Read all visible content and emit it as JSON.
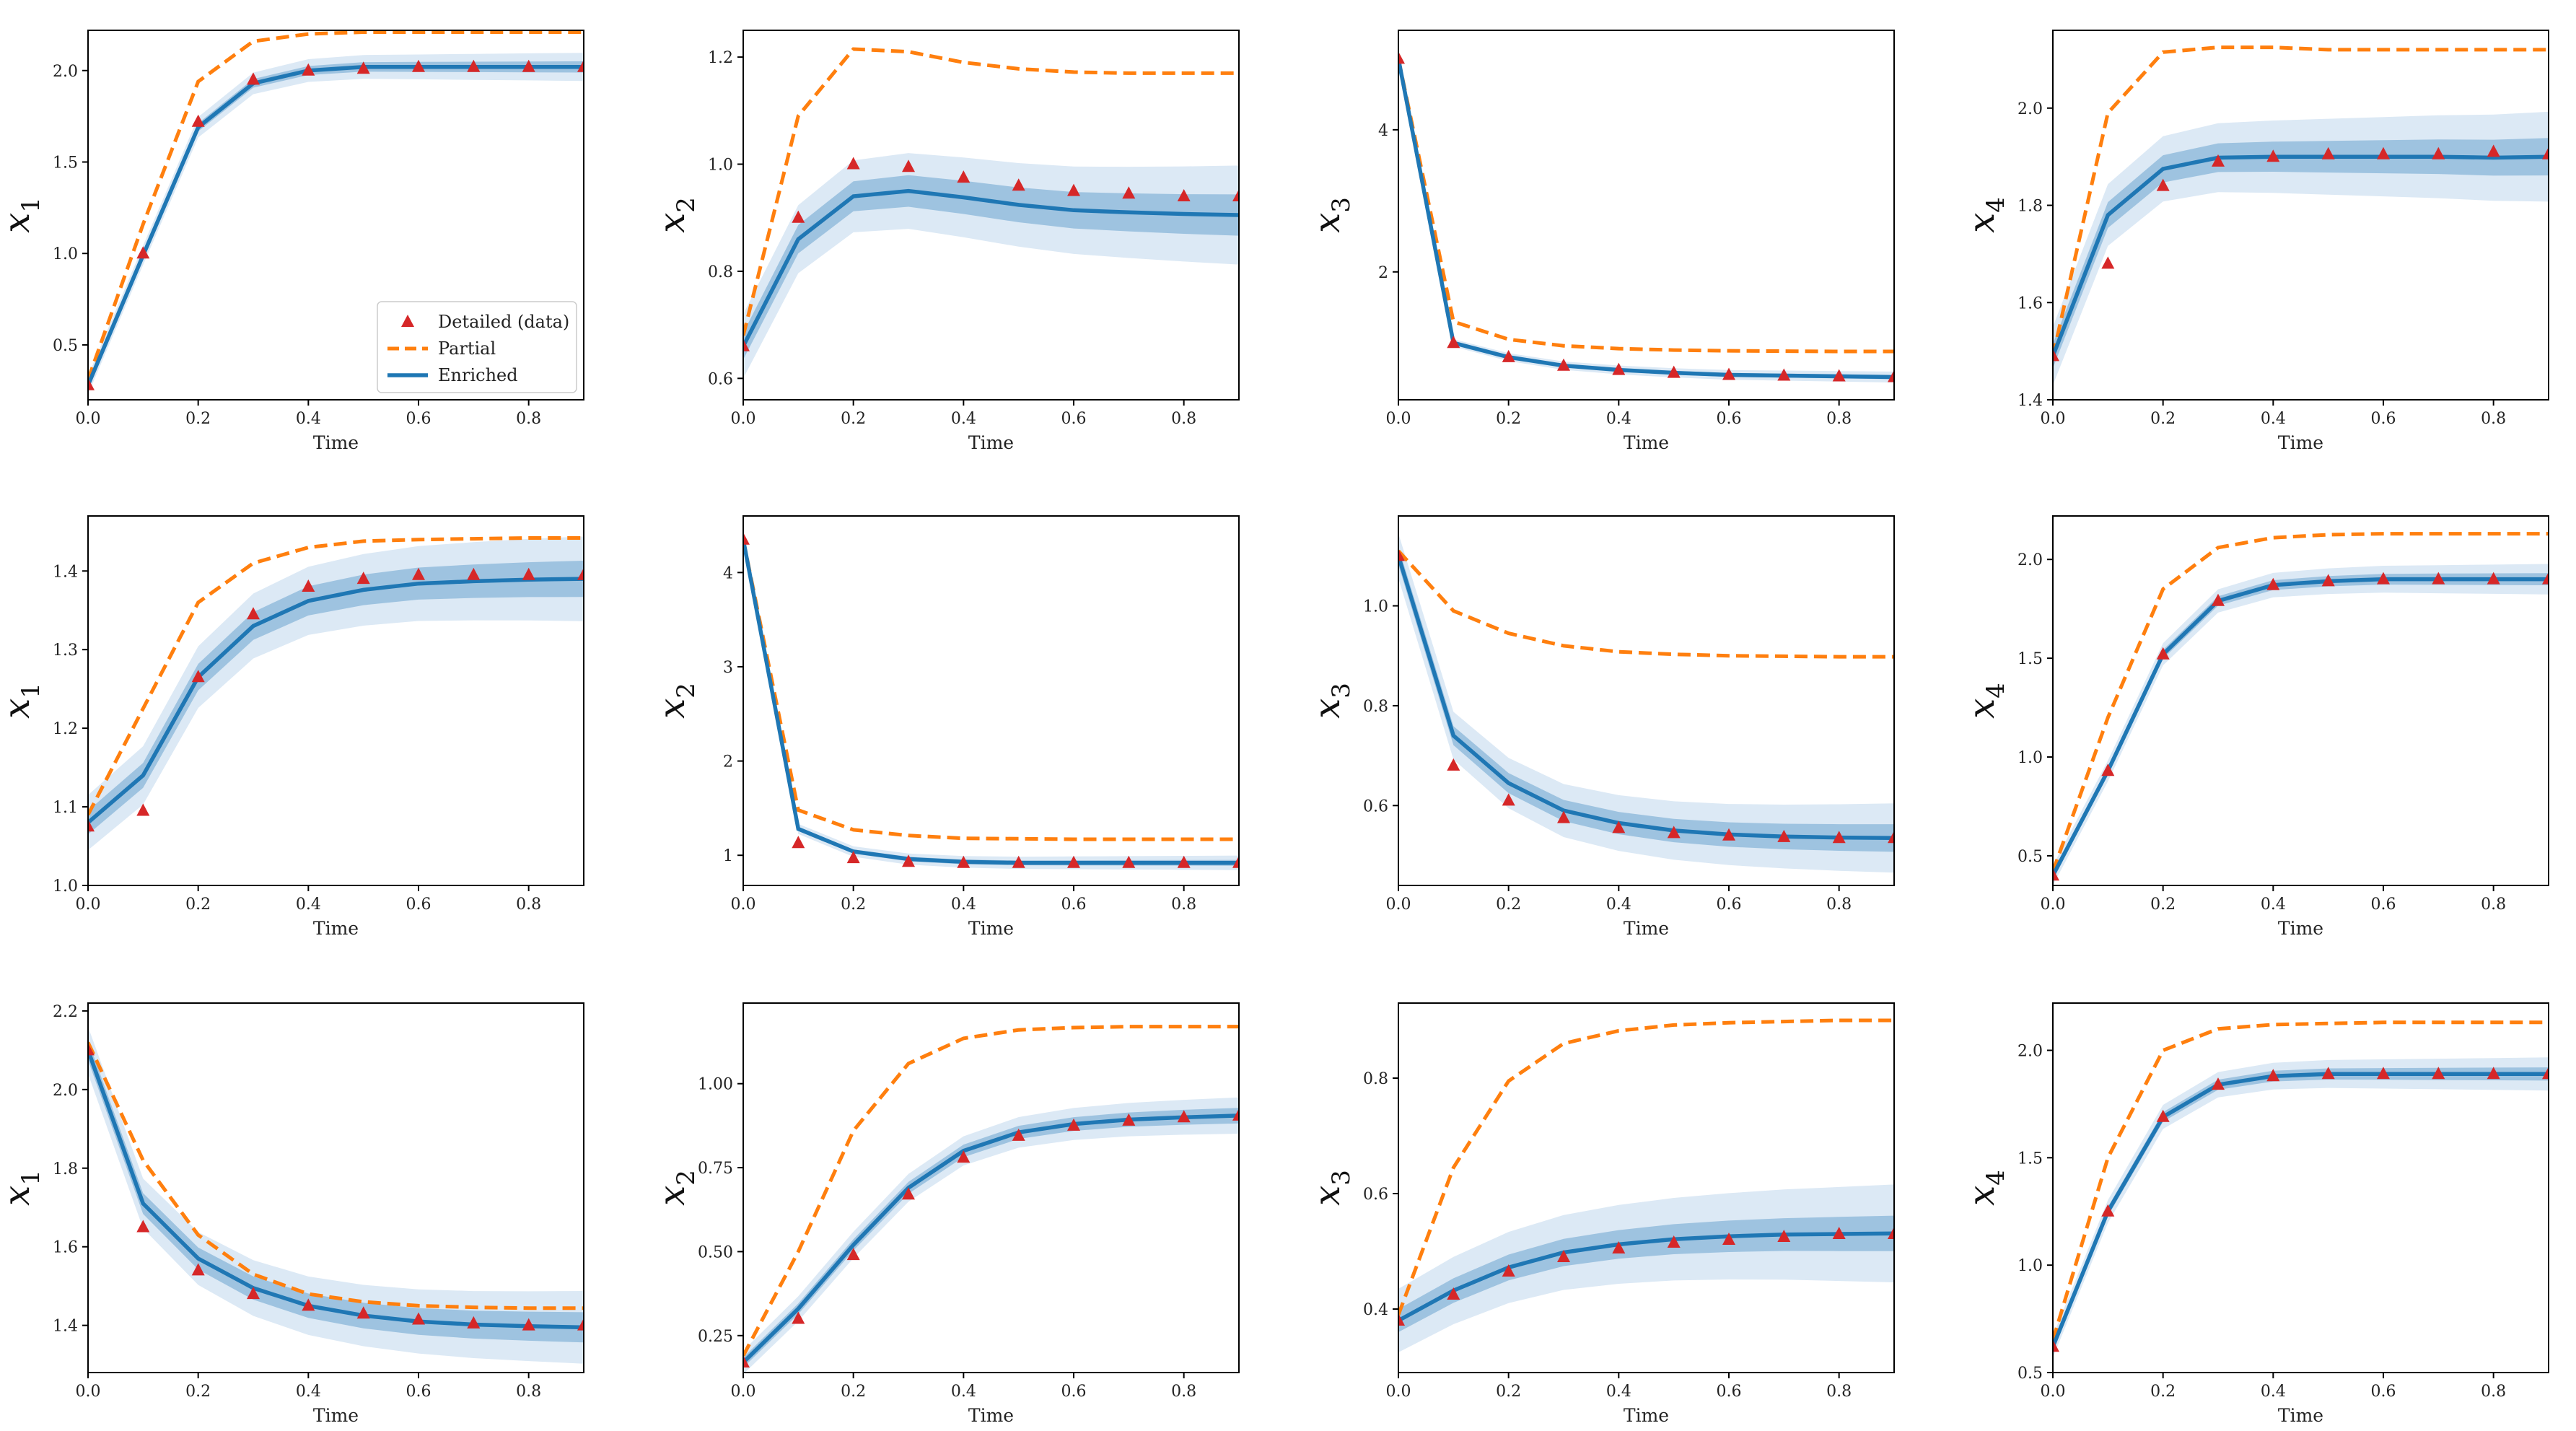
{
  "colors": {
    "detailed": "#d62728",
    "partial": "#ff7f0e",
    "enriched": "#1f77b4",
    "band_outer": "#dce9f5",
    "band_inner": "#9ec3e0"
  },
  "legend": {
    "detailed": "Detailed (data)",
    "partial": "Partial",
    "enriched": "Enriched",
    "location": "lower right"
  },
  "chart_data": [
    {
      "type": "line",
      "ylabel_var": "x",
      "ylabel_sub": "1",
      "xlabel": "Time",
      "xlim": [
        0,
        0.9
      ],
      "ylim": [
        0.2,
        2.22
      ],
      "xticks": [
        0,
        0.2,
        0.4,
        0.6,
        0.8
      ],
      "yticks": [
        0.5,
        1.0,
        1.5,
        2.0
      ],
      "ytick_decimals": 1,
      "show_legend": true,
      "x": [
        0,
        0.1,
        0.2,
        0.3,
        0.4,
        0.5,
        0.6,
        0.7,
        0.8,
        0.9
      ],
      "detailed": [
        0.28,
        1.0,
        1.72,
        1.95,
        2.0,
        2.01,
        2.02,
        2.02,
        2.02,
        2.02
      ],
      "partial": [
        0.31,
        1.16,
        1.94,
        2.16,
        2.2,
        2.21,
        2.21,
        2.21,
        2.21,
        2.21
      ],
      "enriched": [
        0.28,
        0.99,
        1.69,
        1.93,
        2.0,
        2.02,
        2.02,
        2.02,
        2.02,
        2.02
      ],
      "inner_band": 0.02,
      "outer_band": 0.05
    },
    {
      "type": "line",
      "ylabel_var": "x",
      "ylabel_sub": "2",
      "xlabel": "Time",
      "xlim": [
        0,
        0.9
      ],
      "ylim": [
        0.56,
        1.25
      ],
      "xticks": [
        0,
        0.2,
        0.4,
        0.6,
        0.8
      ],
      "yticks": [
        0.6,
        0.8,
        1.0,
        1.2
      ],
      "ytick_decimals": 1,
      "show_legend": false,
      "x": [
        0,
        0.1,
        0.2,
        0.3,
        0.4,
        0.5,
        0.6,
        0.7,
        0.8,
        0.9
      ],
      "detailed": [
        0.66,
        0.9,
        1.0,
        0.995,
        0.975,
        0.96,
        0.95,
        0.945,
        0.94,
        0.94
      ],
      "partial": [
        0.68,
        1.09,
        1.215,
        1.21,
        1.19,
        1.178,
        1.172,
        1.17,
        1.17,
        1.17
      ],
      "enriched": [
        0.66,
        0.86,
        0.94,
        0.95,
        0.938,
        0.924,
        0.914,
        0.91,
        0.907,
        0.905
      ],
      "inner_band": 0.025,
      "outer_band": 0.06
    },
    {
      "type": "line",
      "ylabel_var": "x",
      "ylabel_sub": "3",
      "xlabel": "Time",
      "xlim": [
        0,
        0.9
      ],
      "ylim": [
        0.2,
        5.4
      ],
      "xticks": [
        0,
        0.2,
        0.4,
        0.6,
        0.8
      ],
      "yticks": [
        2,
        4
      ],
      "ytick_decimals": 0,
      "show_legend": false,
      "x": [
        0,
        0.1,
        0.2,
        0.3,
        0.4,
        0.5,
        0.6,
        0.7,
        0.8,
        0.9
      ],
      "detailed": [
        5.0,
        1.0,
        0.8,
        0.68,
        0.62,
        0.58,
        0.55,
        0.54,
        0.53,
        0.52
      ],
      "partial": [
        5.0,
        1.3,
        1.05,
        0.96,
        0.92,
        0.9,
        0.89,
        0.885,
        0.88,
        0.88
      ],
      "enriched": [
        5.0,
        1.0,
        0.8,
        0.68,
        0.62,
        0.58,
        0.55,
        0.54,
        0.53,
        0.52
      ],
      "inner_band": 0.02,
      "outer_band": 0.05
    },
    {
      "type": "line",
      "ylabel_var": "x",
      "ylabel_sub": "4",
      "xlabel": "Time",
      "xlim": [
        0,
        0.9
      ],
      "ylim": [
        1.4,
        2.16
      ],
      "xticks": [
        0,
        0.2,
        0.4,
        0.6,
        0.8
      ],
      "yticks": [
        1.4,
        1.6,
        1.8,
        2.0
      ],
      "ytick_decimals": 1,
      "show_legend": false,
      "x": [
        0,
        0.1,
        0.2,
        0.3,
        0.4,
        0.5,
        0.6,
        0.7,
        0.8,
        0.9
      ],
      "detailed": [
        1.49,
        1.68,
        1.84,
        1.89,
        1.9,
        1.905,
        1.905,
        1.905,
        1.91,
        1.905
      ],
      "partial": [
        1.49,
        1.99,
        2.115,
        2.125,
        2.125,
        2.12,
        2.12,
        2.12,
        2.12,
        2.12
      ],
      "enriched": [
        1.49,
        1.78,
        1.875,
        1.898,
        1.9,
        1.9,
        1.9,
        1.9,
        1.898,
        1.9
      ],
      "inner_band": 0.025,
      "outer_band": 0.06
    },
    {
      "type": "line",
      "ylabel_var": "x",
      "ylabel_sub": "1",
      "xlabel": "Time",
      "xlim": [
        0,
        0.9
      ],
      "ylim": [
        1.0,
        1.47
      ],
      "xticks": [
        0,
        0.2,
        0.4,
        0.6,
        0.8
      ],
      "yticks": [
        1.0,
        1.1,
        1.2,
        1.3,
        1.4
      ],
      "ytick_decimals": 1,
      "show_legend": false,
      "x": [
        0,
        0.1,
        0.2,
        0.3,
        0.4,
        0.5,
        0.6,
        0.7,
        0.8,
        0.9
      ],
      "detailed": [
        1.075,
        1.095,
        1.265,
        1.345,
        1.38,
        1.39,
        1.395,
        1.395,
        1.395,
        1.395
      ],
      "partial": [
        1.09,
        1.225,
        1.36,
        1.41,
        1.43,
        1.438,
        1.44,
        1.441,
        1.442,
        1.442
      ],
      "enriched": [
        1.08,
        1.14,
        1.265,
        1.33,
        1.362,
        1.376,
        1.384,
        1.387,
        1.389,
        1.39
      ],
      "inner_band": 0.015,
      "outer_band": 0.035
    },
    {
      "type": "line",
      "ylabel_var": "x",
      "ylabel_sub": "2",
      "xlabel": "Time",
      "xlim": [
        0,
        0.9
      ],
      "ylim": [
        0.68,
        4.6
      ],
      "xticks": [
        0,
        0.2,
        0.4,
        0.6,
        0.8
      ],
      "yticks": [
        1,
        2,
        3,
        4
      ],
      "ytick_decimals": 0,
      "show_legend": false,
      "x": [
        0,
        0.1,
        0.2,
        0.3,
        0.4,
        0.5,
        0.6,
        0.7,
        0.8,
        0.9
      ],
      "detailed": [
        4.35,
        1.13,
        0.97,
        0.93,
        0.92,
        0.92,
        0.92,
        0.92,
        0.92,
        0.92
      ],
      "partial": [
        4.35,
        1.48,
        1.27,
        1.21,
        1.18,
        1.175,
        1.17,
        1.17,
        1.17,
        1.17
      ],
      "enriched": [
        4.35,
        1.28,
        1.04,
        0.96,
        0.93,
        0.92,
        0.92,
        0.92,
        0.92,
        0.92
      ],
      "inner_band": 0.02,
      "outer_band": 0.05
    },
    {
      "type": "line",
      "ylabel_var": "x",
      "ylabel_sub": "3",
      "xlabel": "Time",
      "xlim": [
        0,
        0.9
      ],
      "ylim": [
        0.44,
        1.18
      ],
      "xticks": [
        0,
        0.2,
        0.4,
        0.6,
        0.8
      ],
      "yticks": [
        0.6,
        0.8,
        1.0
      ],
      "ytick_decimals": 1,
      "show_legend": false,
      "x": [
        0,
        0.1,
        0.2,
        0.3,
        0.4,
        0.5,
        0.6,
        0.7,
        0.8,
        0.9
      ],
      "detailed": [
        1.1,
        0.68,
        0.61,
        0.575,
        0.555,
        0.545,
        0.54,
        0.537,
        0.535,
        0.535
      ],
      "partial": [
        1.11,
        0.99,
        0.945,
        0.92,
        0.908,
        0.903,
        0.9,
        0.899,
        0.898,
        0.898
      ],
      "enriched": [
        1.1,
        0.74,
        0.645,
        0.59,
        0.565,
        0.55,
        0.542,
        0.538,
        0.536,
        0.535
      ],
      "inner_band": 0.018,
      "outer_band": 0.045
    },
    {
      "type": "line",
      "ylabel_var": "x",
      "ylabel_sub": "4",
      "xlabel": "Time",
      "xlim": [
        0,
        0.9
      ],
      "ylim": [
        0.35,
        2.22
      ],
      "xticks": [
        0,
        0.2,
        0.4,
        0.6,
        0.8
      ],
      "yticks": [
        0.5,
        1.0,
        1.5,
        2.0
      ],
      "ytick_decimals": 1,
      "show_legend": false,
      "x": [
        0,
        0.1,
        0.2,
        0.3,
        0.4,
        0.5,
        0.6,
        0.7,
        0.8,
        0.9
      ],
      "detailed": [
        0.4,
        0.93,
        1.52,
        1.79,
        1.87,
        1.89,
        1.9,
        1.9,
        1.9,
        1.9
      ],
      "partial": [
        0.42,
        1.2,
        1.85,
        2.06,
        2.11,
        2.125,
        2.13,
        2.13,
        2.13,
        2.13
      ],
      "enriched": [
        0.4,
        0.93,
        1.52,
        1.79,
        1.87,
        1.89,
        1.9,
        1.9,
        1.9,
        1.9
      ],
      "inner_band": 0.02,
      "outer_band": 0.05
    },
    {
      "type": "line",
      "ylabel_var": "x",
      "ylabel_sub": "1",
      "xlabel": "Time",
      "xlim": [
        0,
        0.9
      ],
      "ylim": [
        1.28,
        2.22
      ],
      "xticks": [
        0,
        0.2,
        0.4,
        0.6,
        0.8
      ],
      "yticks": [
        1.4,
        1.6,
        1.8,
        2.0,
        2.2
      ],
      "ytick_decimals": 1,
      "show_legend": false,
      "x": [
        0,
        0.1,
        0.2,
        0.3,
        0.4,
        0.5,
        0.6,
        0.7,
        0.8,
        0.9
      ],
      "detailed": [
        2.1,
        1.65,
        1.54,
        1.48,
        1.45,
        1.43,
        1.415,
        1.405,
        1.4,
        1.4
      ],
      "partial": [
        2.12,
        1.82,
        1.63,
        1.53,
        1.48,
        1.46,
        1.45,
        1.446,
        1.444,
        1.444
      ],
      "enriched": [
        2.1,
        1.71,
        1.57,
        1.495,
        1.45,
        1.425,
        1.41,
        1.402,
        1.398,
        1.395
      ],
      "inner_band": 0.025,
      "outer_band": 0.06
    },
    {
      "type": "line",
      "ylabel_var": "x",
      "ylabel_sub": "2",
      "xlabel": "Time",
      "xlim": [
        0,
        0.9
      ],
      "ylim": [
        0.14,
        1.24
      ],
      "xticks": [
        0,
        0.2,
        0.4,
        0.6,
        0.8
      ],
      "yticks": [
        0.25,
        0.5,
        0.75,
        1.0
      ],
      "ytick_decimals": 2,
      "show_legend": false,
      "x": [
        0,
        0.1,
        0.2,
        0.3,
        0.4,
        0.5,
        0.6,
        0.7,
        0.8,
        0.9
      ],
      "detailed": [
        0.17,
        0.3,
        0.49,
        0.67,
        0.78,
        0.845,
        0.875,
        0.89,
        0.9,
        0.905
      ],
      "partial": [
        0.19,
        0.5,
        0.86,
        1.06,
        1.135,
        1.16,
        1.167,
        1.17,
        1.17,
        1.17
      ],
      "enriched": [
        0.17,
        0.33,
        0.52,
        0.69,
        0.8,
        0.855,
        0.88,
        0.893,
        0.9,
        0.905
      ],
      "inner_band": 0.015,
      "outer_band": 0.035
    },
    {
      "type": "line",
      "ylabel_var": "x",
      "ylabel_sub": "3",
      "xlabel": "Time",
      "xlim": [
        0,
        0.9
      ],
      "ylim": [
        0.29,
        0.93
      ],
      "xticks": [
        0,
        0.2,
        0.4,
        0.6,
        0.8
      ],
      "yticks": [
        0.4,
        0.6,
        0.8
      ],
      "ytick_decimals": 1,
      "show_legend": false,
      "x": [
        0,
        0.1,
        0.2,
        0.3,
        0.4,
        0.5,
        0.6,
        0.7,
        0.8,
        0.9
      ],
      "detailed": [
        0.38,
        0.425,
        0.465,
        0.49,
        0.505,
        0.515,
        0.52,
        0.525,
        0.53,
        0.53
      ],
      "partial": [
        0.39,
        0.645,
        0.795,
        0.86,
        0.882,
        0.892,
        0.896,
        0.898,
        0.9,
        0.9
      ],
      "enriched": [
        0.38,
        0.432,
        0.472,
        0.498,
        0.512,
        0.521,
        0.526,
        0.529,
        0.53,
        0.531
      ],
      "inner_band": 0.02,
      "outer_band": 0.055
    },
    {
      "type": "line",
      "ylabel_var": "x",
      "ylabel_sub": "4",
      "xlabel": "Time",
      "xlim": [
        0,
        0.9
      ],
      "ylim": [
        0.5,
        2.22
      ],
      "xticks": [
        0,
        0.2,
        0.4,
        0.6,
        0.8
      ],
      "yticks": [
        0.5,
        1.0,
        1.5,
        2.0
      ],
      "ytick_decimals": 1,
      "show_legend": false,
      "x": [
        0,
        0.1,
        0.2,
        0.3,
        0.4,
        0.5,
        0.6,
        0.7,
        0.8,
        0.9
      ],
      "detailed": [
        0.62,
        1.25,
        1.69,
        1.84,
        1.88,
        1.89,
        1.89,
        1.89,
        1.89,
        1.89
      ],
      "partial": [
        0.65,
        1.5,
        2.0,
        2.1,
        2.12,
        2.125,
        2.13,
        2.13,
        2.13,
        2.13
      ],
      "enriched": [
        0.62,
        1.25,
        1.69,
        1.84,
        1.88,
        1.89,
        1.89,
        1.89,
        1.89,
        1.89
      ],
      "inner_band": 0.02,
      "outer_band": 0.05
    }
  ]
}
